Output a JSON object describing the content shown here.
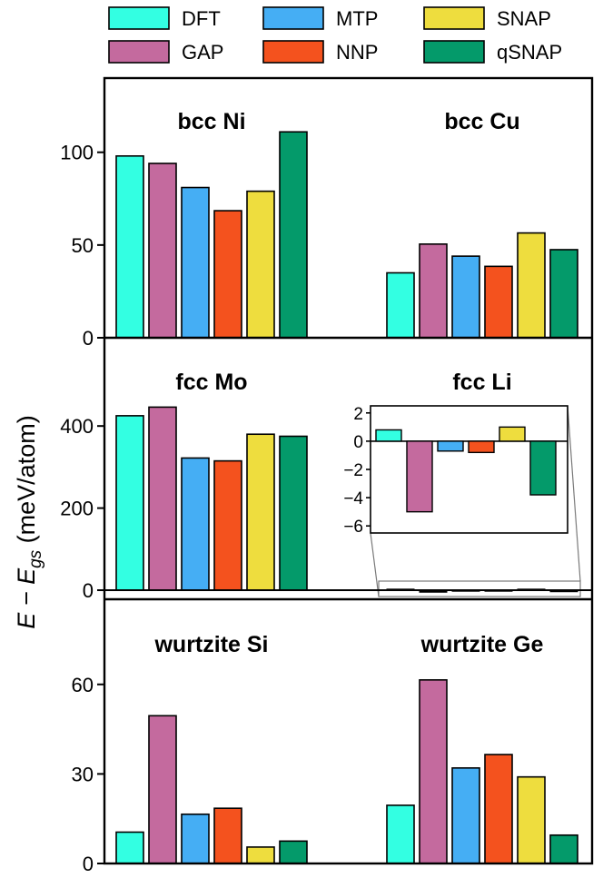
{
  "legend": {
    "entries": [
      {
        "name": "DFT",
        "color": "#33FFE2"
      },
      {
        "name": "GAP",
        "color": "#C46A9E"
      },
      {
        "name": "MTP",
        "color": "#45AEF4"
      },
      {
        "name": "NNP",
        "color": "#F4521E"
      },
      {
        "name": "SNAP",
        "color": "#EEDD3E"
      },
      {
        "name": "qSNAP",
        "color": "#049A6A"
      }
    ]
  },
  "ylabel_main": "E − E",
  "ylabel_sub": "gs",
  "ylabel_unit": " (meV/atom)",
  "chart_data": [
    {
      "type": "bar",
      "panel": "top",
      "series_names": [
        "DFT",
        "GAP",
        "MTP",
        "NNP",
        "SNAP",
        "qSNAP"
      ],
      "ylim": [
        0,
        140
      ],
      "yticks": [
        0,
        50,
        100
      ],
      "groups": [
        {
          "title": "bcc Ni",
          "values": [
            98,
            94,
            81,
            68.5,
            79,
            111
          ]
        },
        {
          "title": "bcc Cu",
          "values": [
            35,
            50.5,
            44,
            38.5,
            56.5,
            47.5
          ]
        }
      ]
    },
    {
      "type": "bar",
      "panel": "middle",
      "series_names": [
        "DFT",
        "GAP",
        "MTP",
        "NNP",
        "SNAP",
        "qSNAP"
      ],
      "ylim": [
        0,
        615
      ],
      "yticks": [
        0,
        200,
        400
      ],
      "groups": [
        {
          "title": "fcc Mo",
          "values": [
            425,
            446,
            322,
            315,
            380,
            375
          ]
        },
        {
          "title": "fcc Li",
          "values": [
            0.8,
            -5,
            -0.7,
            -0.8,
            1,
            -3.8
          ]
        }
      ],
      "inset": {
        "group": "fcc Li",
        "ylim": [
          -6.5,
          2.5
        ],
        "yticks": [
          -6,
          -4,
          -2,
          0,
          2
        ],
        "values": [
          0.8,
          -5,
          -0.7,
          -0.8,
          1,
          -3.8
        ]
      }
    },
    {
      "type": "bar",
      "panel": "bottom",
      "series_names": [
        "DFT",
        "GAP",
        "MTP",
        "NNP",
        "SNAP",
        "qSNAP"
      ],
      "ylim": [
        0,
        87
      ],
      "yticks": [
        0,
        30,
        60
      ],
      "groups": [
        {
          "title": "wurtzite Si",
          "values": [
            10.5,
            49.5,
            16.5,
            18.5,
            5.5,
            7.5
          ]
        },
        {
          "title": "wurtzite Ge",
          "values": [
            19.5,
            61.5,
            32,
            36.5,
            29,
            9.5
          ]
        }
      ]
    }
  ]
}
